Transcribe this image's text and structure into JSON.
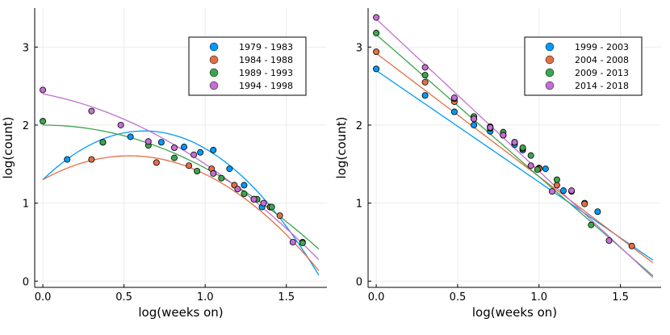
{
  "colors": [
    "#009AF9",
    "#E26F46",
    "#3EA44E",
    "#C270D1"
  ],
  "chart_data": [
    {
      "type": "scatter",
      "xlabel": "log(weeks on)",
      "ylabel": "log(count)",
      "xlim": [
        -0.05,
        1.75
      ],
      "ylim": [
        -0.08,
        3.5
      ],
      "xticks": [
        0.0,
        0.5,
        1.0,
        1.5
      ],
      "xtick_labels": [
        "0.0",
        "0.5",
        "1.0",
        "1.5"
      ],
      "yticks": [
        0,
        1,
        2,
        3
      ],
      "ytick_labels": [
        "0",
        "1",
        "2",
        "3"
      ],
      "grid": true,
      "legend_position": "top-right",
      "fit_x_range": [
        0.0,
        1.7
      ],
      "series": [
        {
          "name": "1979 -  1983",
          "points": [
            [
              0.15,
              1.56
            ],
            [
              0.37,
              1.78
            ],
            [
              0.54,
              1.85
            ],
            [
              0.73,
              1.78
            ],
            [
              0.87,
              1.72
            ],
            [
              0.97,
              1.65
            ],
            [
              1.05,
              1.68
            ],
            [
              1.15,
              1.44
            ],
            [
              1.24,
              1.23
            ],
            [
              1.35,
              0.95
            ],
            [
              1.4,
              0.95
            ]
          ],
          "fit": [
            1.3,
            2.0,
            -1.6
          ]
        },
        {
          "name": "1984 -  1988",
          "points": [
            [
              0.3,
              1.56
            ],
            [
              0.7,
              1.52
            ],
            [
              0.9,
              1.48
            ],
            [
              1.04,
              1.44
            ],
            [
              1.18,
              1.23
            ],
            [
              1.3,
              1.05
            ],
            [
              1.4,
              0.95
            ],
            [
              1.46,
              0.84
            ],
            [
              1.6,
              0.5
            ]
          ],
          "fit": [
            1.3,
            1.15,
            -1.08
          ]
        },
        {
          "name": "1989 -  1993",
          "points": [
            [
              0.0,
              2.05
            ],
            [
              0.37,
              1.78
            ],
            [
              0.65,
              1.74
            ],
            [
              0.81,
              1.58
            ],
            [
              0.95,
              1.41
            ],
            [
              1.1,
              1.32
            ],
            [
              1.24,
              1.12
            ],
            [
              1.32,
              1.05
            ],
            [
              1.41,
              0.95
            ],
            [
              1.6,
              0.49
            ]
          ],
          "fit": [
            2.0,
            0.0,
            -0.55
          ]
        },
        {
          "name": "1994 -  1998",
          "points": [
            [
              0.0,
              2.45
            ],
            [
              0.3,
              2.18
            ],
            [
              0.48,
              2.0
            ],
            [
              0.65,
              1.79
            ],
            [
              0.81,
              1.71
            ],
            [
              0.93,
              1.62
            ],
            [
              1.05,
              1.38
            ],
            [
              1.2,
              1.18
            ],
            [
              1.3,
              1.05
            ],
            [
              1.36,
              1.0
            ],
            [
              1.54,
              0.5
            ]
          ],
          "fit": [
            2.4,
            -0.4,
            -0.5
          ]
        }
      ]
    },
    {
      "type": "scatter",
      "xlabel": "log(weeks on)",
      "ylabel": "log(count)",
      "xlim": [
        -0.05,
        1.75
      ],
      "ylim": [
        -0.08,
        3.5
      ],
      "xticks": [
        0.0,
        0.5,
        1.0,
        1.5
      ],
      "xtick_labels": [
        "0.0",
        "0.5",
        "1.0",
        "1.5"
      ],
      "yticks": [
        0,
        1,
        2,
        3
      ],
      "ytick_labels": [
        "0",
        "1",
        "2",
        "3"
      ],
      "grid": true,
      "legend_position": "top-right",
      "fit_x_range": [
        0.0,
        1.7
      ],
      "series": [
        {
          "name": "1999 -  2003",
          "points": [
            [
              0.0,
              2.72
            ],
            [
              0.3,
              2.38
            ],
            [
              0.48,
              2.17
            ],
            [
              0.6,
              2.0
            ],
            [
              0.7,
              1.92
            ],
            [
              0.78,
              1.87
            ],
            [
              0.85,
              1.75
            ],
            [
              0.9,
              1.68
            ],
            [
              1.0,
              1.45
            ],
            [
              1.04,
              1.44
            ],
            [
              1.15,
              1.16
            ],
            [
              1.28,
              1.0
            ],
            [
              1.36,
              0.89
            ]
          ],
          "fit": [
            2.7,
            -1.43,
            0.0
          ]
        },
        {
          "name": "2004 -  2008",
          "points": [
            [
              0.0,
              2.94
            ],
            [
              0.3,
              2.55
            ],
            [
              0.48,
              2.3
            ],
            [
              0.6,
              2.08
            ],
            [
              0.7,
              1.96
            ],
            [
              0.78,
              1.87
            ],
            [
              0.85,
              1.78
            ],
            [
              0.9,
              1.7
            ],
            [
              1.0,
              1.44
            ],
            [
              1.11,
              1.23
            ],
            [
              1.28,
              0.99
            ],
            [
              1.57,
              0.45
            ]
          ],
          "fit": [
            2.92,
            -1.58,
            0.0
          ]
        },
        {
          "name": "2009 -  2013",
          "points": [
            [
              0.0,
              3.18
            ],
            [
              0.3,
              2.64
            ],
            [
              0.48,
              2.34
            ],
            [
              0.6,
              2.11
            ],
            [
              0.7,
              1.98
            ],
            [
              0.78,
              1.91
            ],
            [
              0.85,
              1.78
            ],
            [
              0.9,
              1.71
            ],
            [
              0.95,
              1.61
            ],
            [
              0.99,
              1.43
            ],
            [
              1.11,
              1.3
            ],
            [
              1.2,
              1.15
            ],
            [
              1.32,
              0.72
            ]
          ],
          "fit": [
            3.16,
            -1.82,
            0.0
          ]
        },
        {
          "name": "2014 -  2018",
          "points": [
            [
              0.0,
              3.38
            ],
            [
              0.3,
              2.74
            ],
            [
              0.48,
              2.35
            ],
            [
              0.6,
              2.08
            ],
            [
              0.7,
              1.97
            ],
            [
              0.78,
              1.87
            ],
            [
              0.85,
              1.78
            ],
            [
              0.95,
              1.48
            ],
            [
              1.08,
              1.15
            ],
            [
              1.2,
              1.16
            ],
            [
              1.43,
              0.52
            ]
          ],
          "fit": [
            3.36,
            -1.95,
            0.0
          ]
        }
      ]
    }
  ]
}
